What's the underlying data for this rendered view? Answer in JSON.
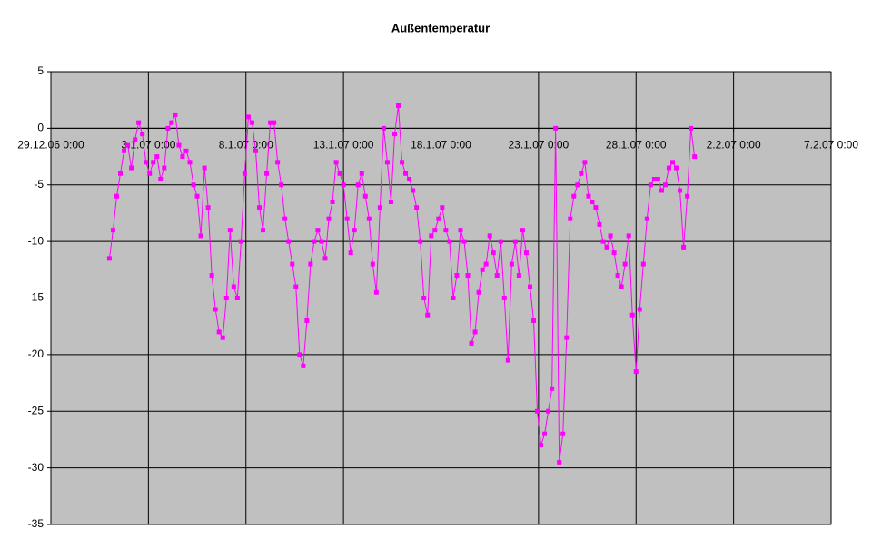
{
  "chart_data": {
    "type": "line",
    "title": "Außentemperatur",
    "x": [
      "1.1.07 0:00",
      "1.1.07 4:30",
      "1.1.07 9:00",
      "1.1.07 13:30",
      "1.1.07 18:00",
      "1.1.07 22:30",
      "2.1.07 3:00",
      "2.1.07 7:30",
      "2.1.07 12:00",
      "2.1.07 16:30",
      "2.1.07 21:00",
      "3.1.07 1:30",
      "3.1.07 6:00",
      "3.1.07 10:30",
      "3.1.07 15:00",
      "3.1.07 19:30",
      "4.1.07 0:00",
      "4.1.07 4:30",
      "4.1.07 9:00",
      "4.1.07 13:30",
      "4.1.07 18:00",
      "4.1.07 22:30",
      "5.1.07 3:00",
      "5.1.07 7:30",
      "5.1.07 12:00",
      "5.1.07 16:30",
      "5.1.07 21:00",
      "6.1.07 1:30",
      "6.1.07 6:00",
      "6.1.07 10:30",
      "6.1.07 15:00",
      "6.1.07 19:30",
      "7.1.07 0:00",
      "7.1.07 4:30",
      "7.1.07 9:00",
      "7.1.07 13:30",
      "7.1.07 18:00",
      "7.1.07 22:30",
      "8.1.07 3:00",
      "8.1.07 7:30",
      "8.1.07 12:00",
      "8.1.07 16:30",
      "8.1.07 21:00",
      "9.1.07 1:30",
      "9.1.07 6:00",
      "9.1.07 10:30",
      "9.1.07 15:00",
      "9.1.07 19:30",
      "10.1.07 0:00",
      "10.1.07 4:30",
      "10.1.07 9:00",
      "10.1.07 13:30",
      "10.1.07 18:00",
      "10.1.07 22:30",
      "11.1.07 3:00",
      "11.1.07 7:30",
      "11.1.07 12:00",
      "11.1.07 16:30",
      "11.1.07 21:00",
      "12.1.07 1:30",
      "12.1.07 6:00",
      "12.1.07 10:30",
      "12.1.07 15:00",
      "12.1.07 19:30",
      "13.1.07 0:00",
      "13.1.07 4:30",
      "13.1.07 9:00",
      "13.1.07 13:30",
      "13.1.07 18:00",
      "13.1.07 22:30",
      "14.1.07 3:00",
      "14.1.07 7:30",
      "14.1.07 12:00",
      "14.1.07 16:30",
      "14.1.07 21:00",
      "15.1.07 1:30",
      "15.1.07 6:00",
      "15.1.07 10:30",
      "15.1.07 15:00",
      "15.1.07 19:30",
      "16.1.07 0:00",
      "16.1.07 4:30",
      "16.1.07 9:00",
      "16.1.07 13:30",
      "16.1.07 18:00",
      "16.1.07 22:30",
      "17.1.07 3:00",
      "17.1.07 7:30",
      "17.1.07 12:00",
      "17.1.07 16:30",
      "17.1.07 21:00",
      "18.1.07 1:30",
      "18.1.07 6:00",
      "18.1.07 10:30",
      "18.1.07 15:00",
      "18.1.07 19:30",
      "19.1.07 0:00",
      "19.1.07 4:30",
      "19.1.07 9:00",
      "19.1.07 13:30",
      "19.1.07 18:00",
      "19.1.07 22:30",
      "20.1.07 3:00",
      "20.1.07 7:30",
      "20.1.07 12:00",
      "20.1.07 16:30",
      "20.1.07 21:00",
      "21.1.07 1:30",
      "21.1.07 6:00",
      "21.1.07 10:30",
      "21.1.07 15:00",
      "21.1.07 19:30",
      "22.1.07 0:00",
      "22.1.07 4:30",
      "22.1.07 9:00",
      "22.1.07 13:30",
      "22.1.07 18:00",
      "22.1.07 22:30",
      "23.1.07 3:00",
      "23.1.07 7:30",
      "23.1.07 12:00",
      "23.1.07 16:30",
      "23.1.07 21:00",
      "24.1.07 1:30",
      "24.1.07 6:00",
      "24.1.07 10:30",
      "24.1.07 15:00",
      "24.1.07 19:30",
      "25.1.07 0:00",
      "25.1.07 4:30",
      "25.1.07 9:00",
      "25.1.07 13:30",
      "25.1.07 18:00",
      "25.1.07 22:30",
      "26.1.07 3:00",
      "26.1.07 7:30",
      "26.1.07 12:00",
      "26.1.07 16:30",
      "26.1.07 21:00",
      "27.1.07 1:30",
      "27.1.07 6:00",
      "27.1.07 10:30",
      "27.1.07 15:00",
      "27.1.07 19:30",
      "28.1.07 0:00",
      "28.1.07 4:30",
      "28.1.07 9:00",
      "28.1.07 13:30",
      "28.1.07 18:00",
      "28.1.07 22:30",
      "29.1.07 3:00",
      "29.1.07 7:30",
      "29.1.07 12:00",
      "29.1.07 16:30",
      "29.1.07 21:00",
      "30.1.07 1:30",
      "30.1.07 6:00",
      "30.1.07 10:30",
      "30.1.07 15:00",
      "30.1.07 19:30",
      "31.1.07 0:00"
    ],
    "series": [
      {
        "color": "#ff00ff",
        "values": [
          -11.5,
          -9,
          -6,
          -4,
          -2,
          -1.5,
          -3.5,
          -1,
          0.5,
          -0.5,
          -3,
          -4,
          -3,
          -2.5,
          -4.5,
          -3.5,
          0,
          0.5,
          1.2,
          -1.5,
          -2.5,
          -2,
          -3,
          -5,
          -6,
          -9.5,
          -3.5,
          -7,
          -13,
          -16,
          -18,
          -18.5,
          -15,
          -9,
          -14,
          -15,
          -10,
          -4,
          1,
          0.5,
          -2,
          -7,
          -9,
          -4,
          0.5,
          0.5,
          -3,
          -5,
          -8,
          -10,
          -12,
          -14,
          -20,
          -21,
          -17,
          -12,
          -10,
          -9,
          -10,
          -11.5,
          -8,
          -6.5,
          -3,
          -4,
          -5,
          -8,
          -11,
          -9,
          -5,
          -4,
          -6,
          -8,
          -12,
          -14.5,
          -7,
          0,
          -3,
          -6.5,
          -0.5,
          2,
          -3,
          -4,
          -4.5,
          -5.5,
          -7,
          -10,
          -15,
          -16.5,
          -9.5,
          -9,
          -8,
          -7,
          -9,
          -10,
          -15,
          -13,
          -9,
          -10,
          -13,
          -19,
          -18,
          -14.5,
          -12.5,
          -12,
          -9.5,
          -11,
          -13,
          -10,
          -15,
          -20.5,
          -12,
          -10,
          -13,
          -9,
          -11,
          -14,
          -17,
          -25,
          -28,
          -27,
          -25,
          -23,
          0,
          -29.5,
          -27,
          -18.5,
          -8,
          -6,
          -5,
          -4,
          -3,
          -6,
          -6.5,
          -7,
          -8.5,
          -10,
          -10.5,
          -9.5,
          -11,
          -13,
          -14,
          -12,
          -9.5,
          -16.5,
          -21.5,
          -16,
          -12,
          -8,
          -5,
          -4.5,
          -4.5,
          -5.5,
          -5,
          -3.5,
          -3,
          -3.5,
          -5.5,
          -10.5,
          -6,
          0,
          -2.5
        ]
      }
    ],
    "xlim": [
      "29.12.06 0:00",
      "7.2.07 0:00"
    ],
    "xticks": [
      "29.12.06 0:00",
      "3.1.07 0:00",
      "8.1.07 0:00",
      "13.1.07 0:00",
      "18.1.07 0:00",
      "23.1.07 0:00",
      "28.1.07 0:00",
      "2.2.07 0:00",
      "7.2.07 0:00"
    ],
    "ylim": [
      -35,
      5
    ],
    "yticks": [
      -35,
      -30,
      -25,
      -20,
      -15,
      -10,
      -5,
      0,
      5
    ],
    "grid": true,
    "plot_background": "#c0c0c0"
  }
}
